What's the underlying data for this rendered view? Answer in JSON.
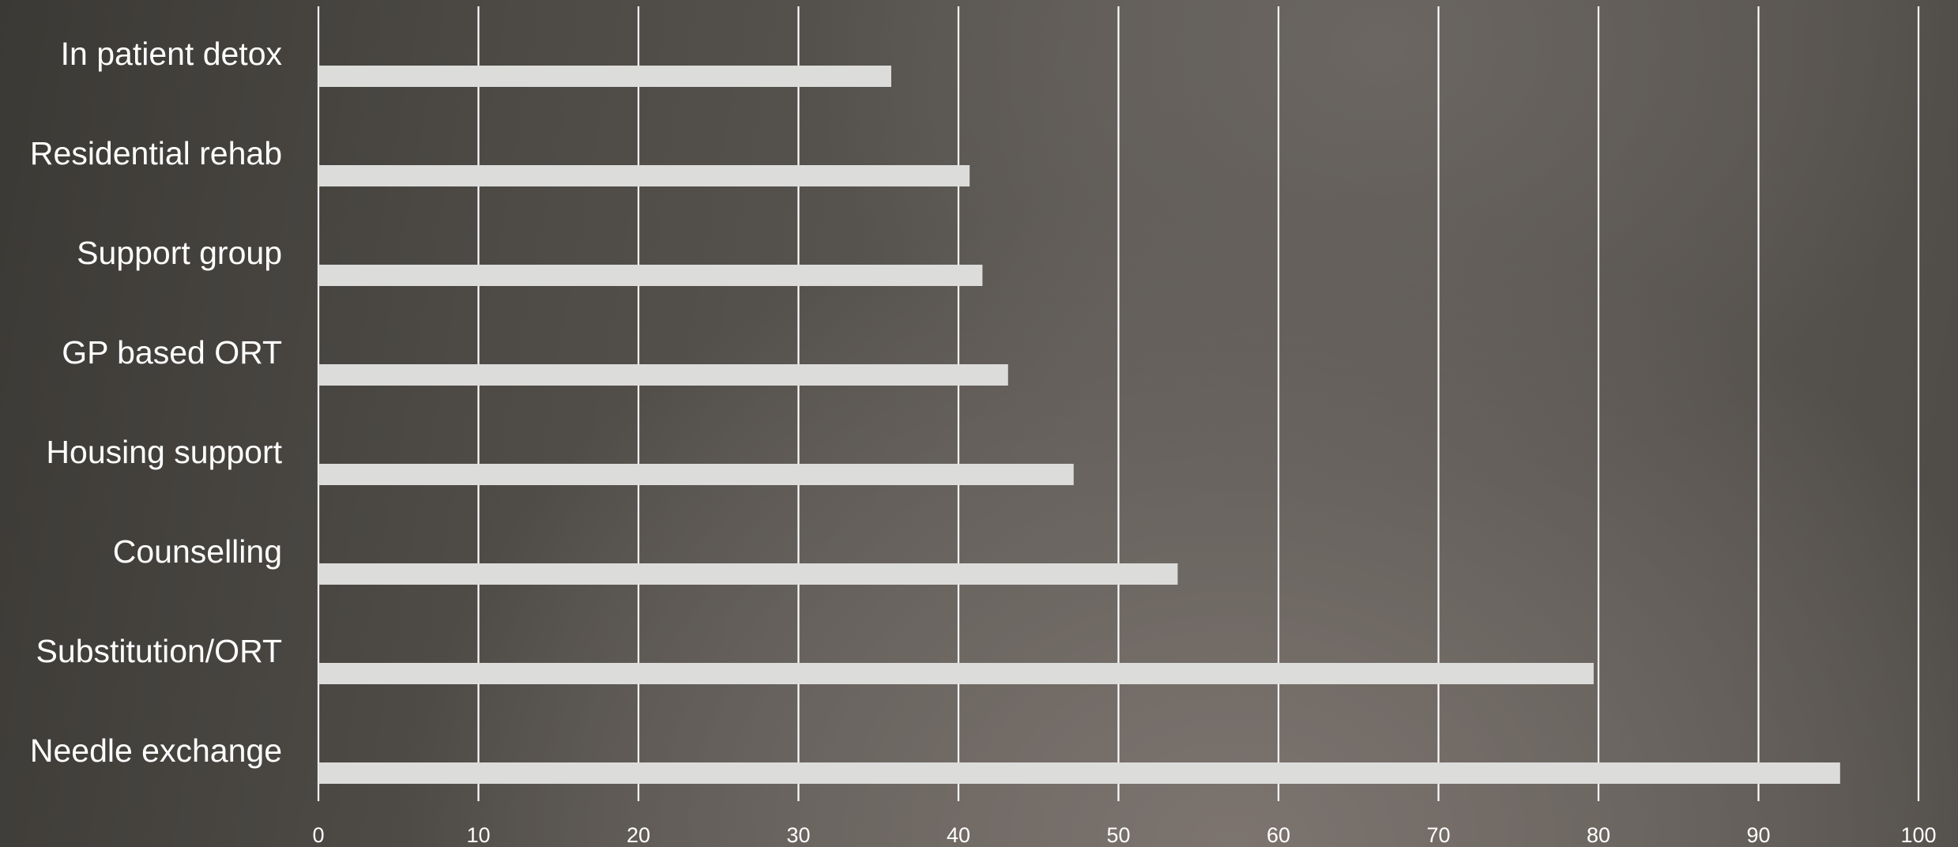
{
  "chart_data": {
    "type": "bar",
    "orientation": "horizontal",
    "title": "",
    "xlabel": "",
    "ylabel": "",
    "categories": [
      "In patient detox",
      "Residential rehab",
      "Support group",
      "GP based ORT",
      "Housing support",
      "Counselling",
      "Substitution/ORT",
      "Needle exchange"
    ],
    "values": [
      35.8,
      40.7,
      41.5,
      43.1,
      47.2,
      53.7,
      79.7,
      95.1
    ],
    "xlim": [
      0,
      100
    ],
    "x_ticks": [
      "0",
      "10",
      "20",
      "30",
      "40",
      "50",
      "60",
      "70",
      "80",
      "90",
      "100"
    ],
    "grid": "vertical",
    "legend": "none",
    "colors": {
      "bar": "#dcdcda",
      "grid": "#ffffff",
      "text": "#ffffff"
    }
  }
}
